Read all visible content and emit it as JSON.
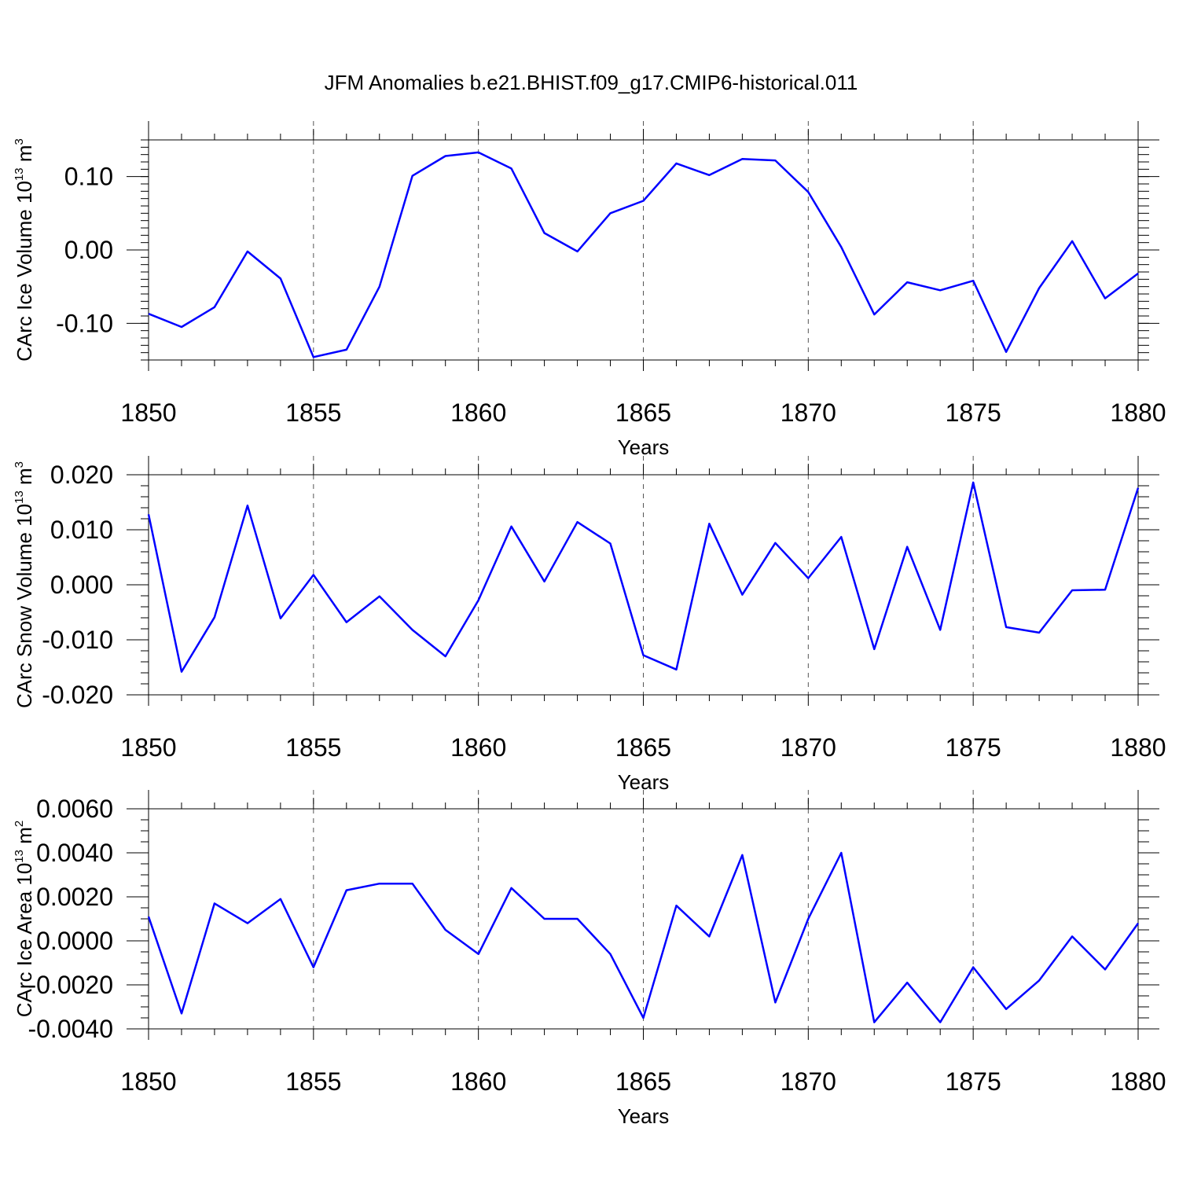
{
  "chart_data": [
    {
      "type": "line",
      "title": "JFM Anomalies b.e21.BHIST.f09_g17.CMIP6-historical.011",
      "xlabel": "Years",
      "ylabel_base": "CArc Ice Volume 10",
      "ylabel_exp": "13",
      "ylabel_unit": " m",
      "ylabel_unit_exp": "3",
      "xlim": [
        1850,
        1880
      ],
      "ylim": [
        -0.15,
        0.15
      ],
      "xticks": [
        1850,
        1855,
        1860,
        1865,
        1870,
        1875,
        1880
      ],
      "xtick_labels": [
        "1850",
        "1855",
        "1860",
        "1865",
        "1870",
        "1875",
        "1880"
      ],
      "yticks": [
        -0.1,
        0.0,
        0.1
      ],
      "ytick_labels": [
        "-0.10",
        "0.00",
        "0.10"
      ],
      "grid": "vertical dashed",
      "color": "#0000ff",
      "series": [
        {
          "name": "CArc Ice Volume",
          "x": [
            1850,
            1851,
            1852,
            1853,
            1854,
            1855,
            1856,
            1857,
            1858,
            1859,
            1860,
            1861,
            1862,
            1863,
            1864,
            1865,
            1866,
            1867,
            1868,
            1869,
            1870,
            1871,
            1872,
            1873,
            1874,
            1875,
            1876,
            1877,
            1878,
            1879,
            1880
          ],
          "values": [
            -0.087,
            -0.105,
            -0.078,
            -0.002,
            -0.039,
            -0.146,
            -0.136,
            -0.05,
            0.101,
            0.128,
            0.133,
            0.111,
            0.023,
            -0.002,
            0.05,
            0.067,
            0.118,
            0.102,
            0.124,
            0.122,
            0.079,
            0.004,
            -0.088,
            -0.044,
            -0.055,
            -0.042,
            -0.139,
            -0.052,
            0.012,
            -0.066,
            -0.032
          ]
        }
      ]
    },
    {
      "type": "line",
      "title": "",
      "xlabel": "Years",
      "ylabel_base": "CArc Snow Volume 10",
      "ylabel_exp": "13",
      "ylabel_unit": " m",
      "ylabel_unit_exp": "3",
      "xlim": [
        1850,
        1880
      ],
      "ylim": [
        -0.02,
        0.02
      ],
      "xticks": [
        1850,
        1855,
        1860,
        1865,
        1870,
        1875,
        1880
      ],
      "xtick_labels": [
        "1850",
        "1855",
        "1860",
        "1865",
        "1870",
        "1875",
        "1880"
      ],
      "yticks": [
        -0.02,
        -0.01,
        0.0,
        0.01,
        0.02
      ],
      "ytick_labels": [
        "-0.020",
        "-0.010",
        "0.000",
        "0.010",
        "0.020"
      ],
      "grid": "vertical dashed",
      "color": "#0000ff",
      "series": [
        {
          "name": "CArc Snow Volume",
          "x": [
            1850,
            1851,
            1852,
            1853,
            1854,
            1855,
            1856,
            1857,
            1858,
            1859,
            1860,
            1861,
            1862,
            1863,
            1864,
            1865,
            1866,
            1867,
            1868,
            1869,
            1870,
            1871,
            1872,
            1873,
            1874,
            1875,
            1876,
            1877,
            1878,
            1879,
            1880
          ],
          "values": [
            0.0128,
            -0.0158,
            -0.0059,
            0.0144,
            -0.0061,
            0.0018,
            -0.0068,
            -0.0021,
            -0.0082,
            -0.013,
            -0.0028,
            0.0106,
            0.0006,
            0.0114,
            0.0075,
            -0.0128,
            -0.0154,
            0.0111,
            -0.0018,
            0.0076,
            0.0012,
            0.0087,
            -0.0117,
            0.0069,
            -0.0082,
            0.0186,
            -0.0077,
            -0.0087,
            -0.001,
            -0.0009,
            0.0176
          ]
        }
      ]
    },
    {
      "type": "line",
      "title": "",
      "xlabel": "Years",
      "ylabel_base": "CArc Ice Area 10",
      "ylabel_exp": "13",
      "ylabel_unit": " m",
      "ylabel_unit_exp": "2",
      "xlim": [
        1850,
        1880
      ],
      "ylim": [
        -0.004,
        0.006
      ],
      "xticks": [
        1850,
        1855,
        1860,
        1865,
        1870,
        1875,
        1880
      ],
      "xtick_labels": [
        "1850",
        "1855",
        "1860",
        "1865",
        "1870",
        "1875",
        "1880"
      ],
      "yticks": [
        -0.004,
        -0.002,
        0.0,
        0.002,
        0.004,
        0.006
      ],
      "ytick_labels": [
        "-0.0040",
        "-0.0020",
        "0.0000",
        "0.0020",
        "0.0040",
        "0.0060"
      ],
      "grid": "vertical dashed",
      "color": "#0000ff",
      "series": [
        {
          "name": "CArc Ice Area",
          "x": [
            1850,
            1851,
            1852,
            1853,
            1854,
            1855,
            1856,
            1857,
            1858,
            1859,
            1860,
            1861,
            1862,
            1863,
            1864,
            1865,
            1866,
            1867,
            1868,
            1869,
            1870,
            1871,
            1872,
            1873,
            1874,
            1875,
            1876,
            1877,
            1878,
            1879,
            1880
          ],
          "values": [
            0.0011,
            -0.0033,
            0.0017,
            0.0008,
            0.0019,
            -0.0012,
            0.0023,
            0.0026,
            0.0026,
            0.0005,
            -0.0006,
            0.0024,
            0.001,
            0.001,
            -0.0006,
            -0.0035,
            0.0016,
            0.0002,
            0.0039,
            -0.0028,
            0.001,
            0.004,
            -0.0037,
            -0.0019,
            -0.0037,
            -0.0012,
            -0.0031,
            -0.0018,
            0.0002,
            -0.0013,
            0.0008
          ]
        }
      ]
    }
  ]
}
